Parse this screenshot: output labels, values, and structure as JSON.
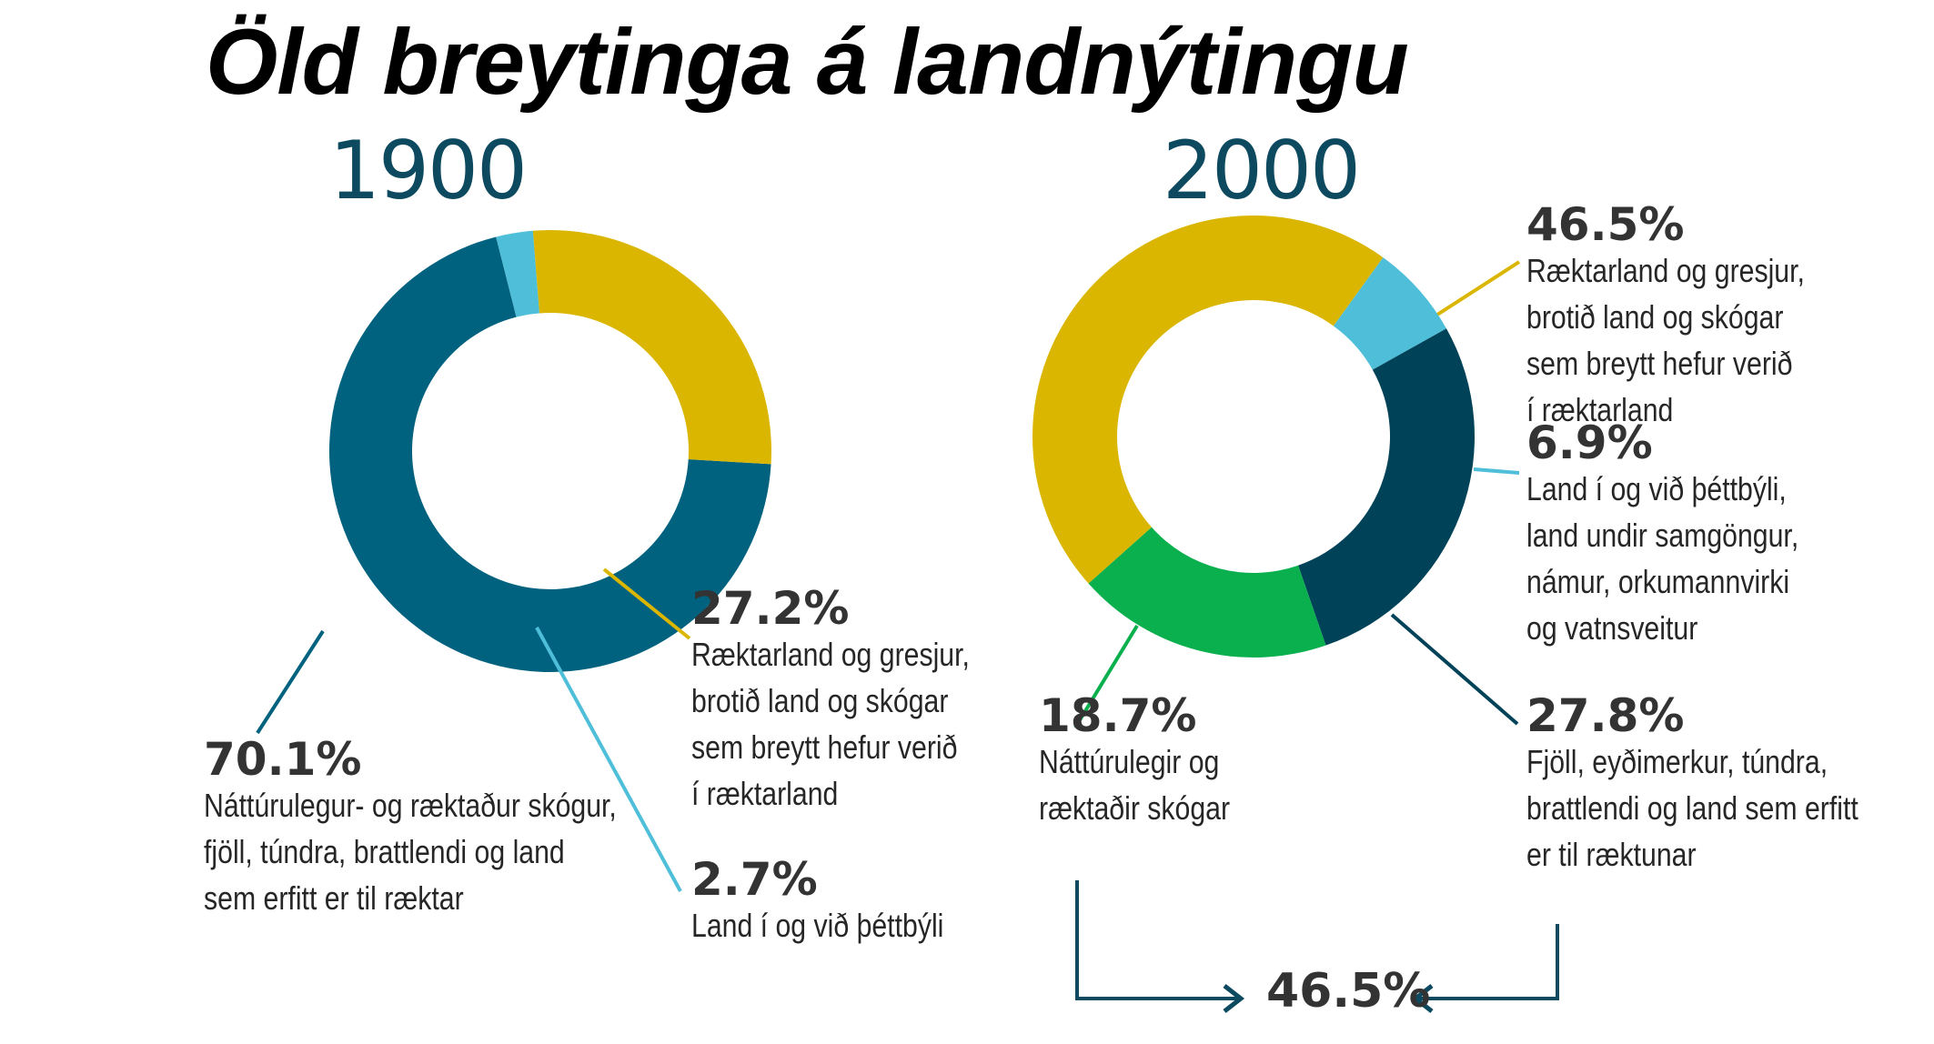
{
  "title": "Öld breytinga á landnýtingu",
  "chart_data": [
    {
      "type": "pie",
      "title": "1900",
      "slices": [
        {
          "value": 70.1,
          "label": "70.1%",
          "description": [
            "Náttúrulegur- og ræktaður skógur,",
            "fjöll, túndra, brattlendi og land",
            "sem erfitt er til ræktar"
          ],
          "color": "#00627f"
        },
        {
          "value": 2.7,
          "label": "2.7%",
          "description": [
            "Land í og við þéttbýli"
          ],
          "color": "#4fbfd9"
        },
        {
          "value": 27.2,
          "label": "27.2%",
          "description": [
            "Ræktarland og gresjur,",
            "brotið land og skógar",
            "sem breytt hefur verið",
            "í ræktarland"
          ],
          "color": "#dbb600"
        }
      ]
    },
    {
      "type": "pie",
      "title": "2000",
      "slices": [
        {
          "value": 46.5,
          "label": "46.5%",
          "description": [
            "Ræktarland og gresjur,",
            "brotið land og skógar",
            "sem breytt hefur verið",
            "í ræktarland"
          ],
          "color": "#dbb600"
        },
        {
          "value": 6.9,
          "label": "6.9%",
          "description": [
            "Land í og við þéttbýli,",
            "land undir samgöngur,",
            "námur, orkumannvirki",
            "og vatnsveitur"
          ],
          "color": "#4fbfd9"
        },
        {
          "value": 27.8,
          "label": "27.8%",
          "description": [
            "Fjöll, eyðimerkur, túndra,",
            "brattlendi og land sem erfitt",
            "er til ræktunar"
          ],
          "color": "#004258"
        },
        {
          "value": 18.7,
          "label": "18.7%",
          "description": [
            "Náttúrulegir og",
            "ræktaðir skógar"
          ],
          "color": "#0ab04e"
        }
      ],
      "combined_total": "46.5%"
    }
  ]
}
